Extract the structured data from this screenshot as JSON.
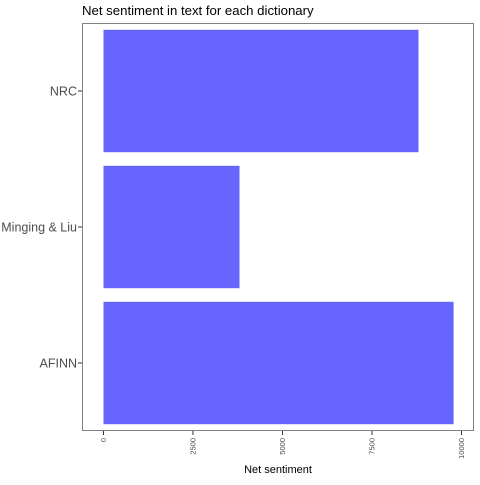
{
  "chart_data": {
    "type": "bar",
    "orientation": "horizontal",
    "title": "Net sentiment in text for each dictionary",
    "xlabel": "Net sentiment",
    "ylabel": "",
    "categories": [
      "NRC",
      "Minging & Liu",
      "AFINN"
    ],
    "values": [
      8800,
      3800,
      9780
    ],
    "xlim": [
      -600,
      10350
    ],
    "x_ticks": [
      0,
      2500,
      5000,
      7500,
      10000
    ],
    "x_tick_labels": [
      "0",
      "2500",
      "5000",
      "7500",
      "10000"
    ],
    "bar_color": "#6666ff",
    "panel_border_color": "#808080",
    "grid": false,
    "legend": "none"
  }
}
